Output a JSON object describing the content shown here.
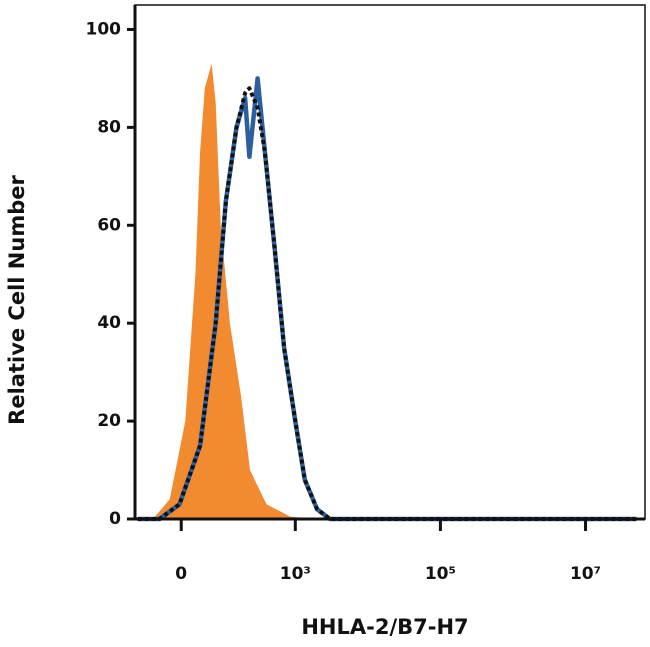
{
  "chart_data": {
    "type": "histogram-overlay",
    "x_label": "HHLA-2/B7-H7",
    "y_label": "Relative Cell Number",
    "xscale": "asinh",
    "xscale_width": 53.6,
    "xlim": [
      -110,
      66000000
    ],
    "ylim": [
      0,
      105
    ],
    "xticks": [
      0,
      {
        "value": 1000,
        "label": "10³"
      },
      {
        "value": 100000,
        "label": "10⁵"
      },
      {
        "value": 10000000,
        "label": "10⁷"
      }
    ],
    "yticks": [
      0,
      20,
      40,
      60,
      80,
      100
    ],
    "series": [
      {
        "color": "#f28a30",
        "fill": true,
        "x": [
          -100,
          -50,
          -20,
          7,
          25,
          34,
          44,
          60,
          71,
          86,
          120,
          175,
          235,
          400,
          850,
          2000,
          50000000
        ],
        "values": [
          0,
          0.5,
          4,
          20,
          50,
          75,
          88,
          93,
          85,
          60,
          40,
          25,
          10,
          3,
          0.5,
          0,
          0
        ]
      },
      {
        "color": "#2d5fa0",
        "dashed": false,
        "x": [
          -100,
          -40,
          -3,
          34,
          71,
          104,
          150,
          200,
          230,
          300,
          380,
          520,
          700,
          1000,
          1350,
          2000,
          3000,
          100000,
          50000000
        ],
        "values": [
          0,
          0,
          3,
          15,
          40,
          65,
          80,
          86,
          74,
          90,
          75,
          55,
          35,
          20,
          8,
          2,
          0,
          0,
          0
        ]
      },
      {
        "color": "#111111",
        "dashed": true,
        "x": [
          -100,
          -40,
          -3,
          34,
          71,
          104,
          150,
          200,
          230,
          300,
          380,
          520,
          700,
          1000,
          1350,
          2000,
          3000,
          100000,
          50000000
        ],
        "values": [
          0,
          0,
          3,
          15,
          40,
          65,
          80,
          87,
          88,
          84,
          75,
          55,
          35,
          20,
          8,
          2,
          0,
          0,
          0
        ]
      }
    ]
  }
}
